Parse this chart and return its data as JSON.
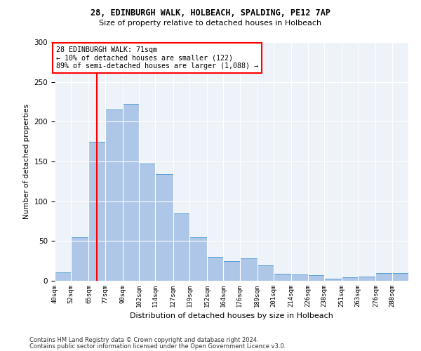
{
  "title1": "28, EDINBURGH WALK, HOLBEACH, SPALDING, PE12 7AP",
  "title2": "Size of property relative to detached houses in Holbeach",
  "xlabel": "Distribution of detached houses by size in Holbeach",
  "ylabel": "Number of detached properties",
  "categories": [
    "40sqm",
    "52sqm",
    "65sqm",
    "77sqm",
    "90sqm",
    "102sqm",
    "114sqm",
    "127sqm",
    "139sqm",
    "152sqm",
    "164sqm",
    "176sqm",
    "189sqm",
    "201sqm",
    "214sqm",
    "226sqm",
    "238sqm",
    "251sqm",
    "263sqm",
    "276sqm",
    "288sqm"
  ],
  "bar_values": [
    11,
    55,
    175,
    215,
    222,
    147,
    134,
    85,
    55,
    30,
    25,
    28,
    19,
    9,
    8,
    7,
    3,
    4,
    5,
    10,
    10
  ],
  "bar_color": "#aec6e8",
  "bar_edge_color": "#5a9fd4",
  "vline_x": 71,
  "vline_color": "red",
  "annotation_text": "28 EDINBURGH WALK: 71sqm\n← 10% of detached houses are smaller (122)\n89% of semi-detached houses are larger (1,088) →",
  "annotation_box_color": "white",
  "annotation_box_edge_color": "red",
  "ylim": [
    0,
    300
  ],
  "yticks": [
    0,
    50,
    100,
    150,
    200,
    250,
    300
  ],
  "footer1": "Contains HM Land Registry data © Crown copyright and database right 2024.",
  "footer2": "Contains public sector information licensed under the Open Government Licence v3.0.",
  "bg_color": "#eef2f9",
  "bin_edges": [
    40,
    52,
    65,
    77,
    90,
    102,
    114,
    127,
    139,
    152,
    164,
    176,
    189,
    201,
    214,
    226,
    238,
    251,
    263,
    276,
    288,
    300
  ]
}
